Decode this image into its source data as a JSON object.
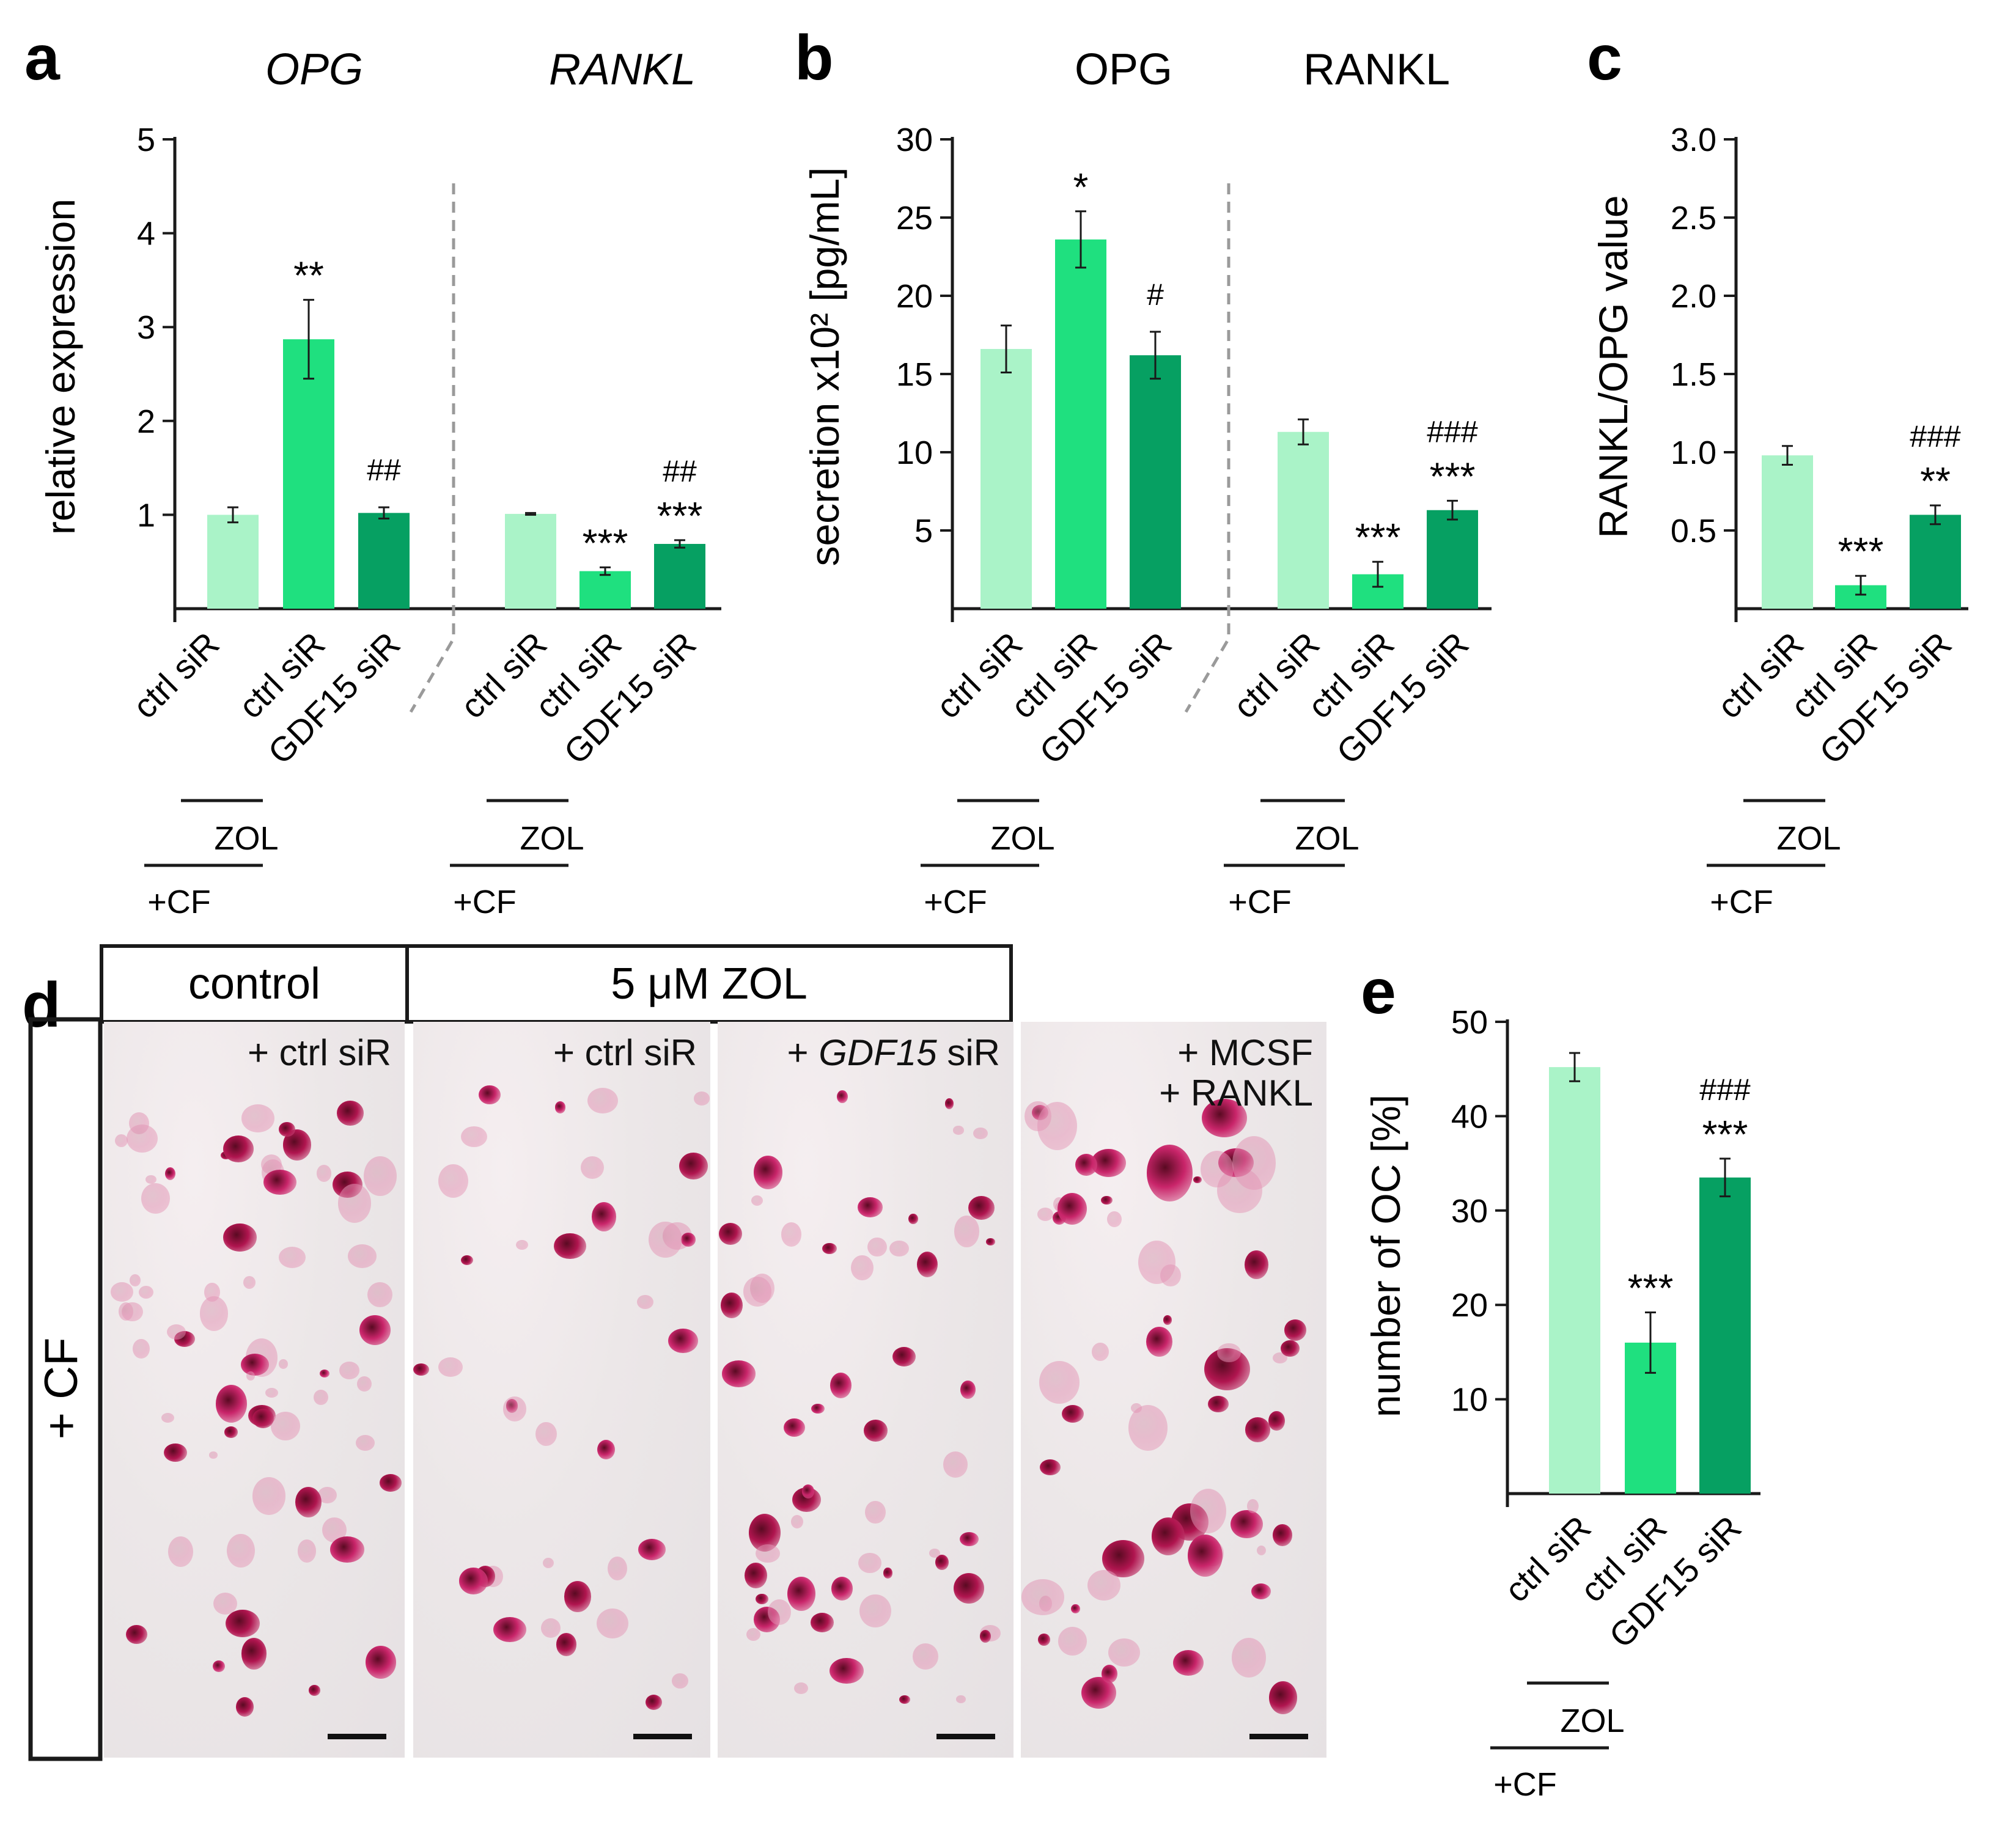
{
  "colors": {
    "light": "#aaf3c8",
    "mid": "#1fe07f",
    "dark": "#06a062",
    "axis": "#1a1a1a",
    "dash": "#9a9a9a"
  },
  "panels": {
    "a": {
      "letter": "a",
      "ylabel": "relative expression",
      "groupTitles": [
        "OPG",
        "RANKL"
      ],
      "groupTitleItalic": true,
      "yticks": [
        "5",
        "4",
        "3",
        "2",
        "1"
      ]
    },
    "b": {
      "letter": "b",
      "ylabel": "secretion x10² [pg/mL]",
      "groupTitles": [
        "OPG",
        "RANKL"
      ],
      "groupTitleItalic": false,
      "yticks": [
        "30",
        "25",
        "20",
        "15",
        "10",
        "5"
      ]
    },
    "c": {
      "letter": "c",
      "ylabel": "RANKL/OPG value",
      "yticks": [
        "3.0",
        "2.5",
        "2.0",
        "1.5",
        "1.0",
        "0.5"
      ]
    },
    "e": {
      "letter": "e",
      "ylabel": "number of OC [%]",
      "yticks": [
        "50",
        "40",
        "30",
        "20",
        "10"
      ]
    }
  },
  "chart_data": [
    {
      "panel": "a",
      "type": "bar",
      "ylabel": "relative expression",
      "ylim": [
        0,
        5
      ],
      "categories": [
        "ctrl siR",
        "ctrl siR",
        "GDF15 siR"
      ],
      "groups": [
        {
          "title": "OPG",
          "values": [
            1.0,
            2.87,
            1.02
          ],
          "errors": [
            0.08,
            0.42,
            0.06
          ],
          "annotations": [
            "",
            "**",
            "##"
          ]
        },
        {
          "title": "RANKL",
          "values": [
            1.01,
            0.4,
            0.69
          ],
          "errors": [
            0.01,
            0.04,
            0.04
          ],
          "annotations": [
            "",
            "***",
            "##\n***"
          ]
        }
      ],
      "conditions": [
        "ZOL",
        "+CF"
      ]
    },
    {
      "panel": "b",
      "type": "bar",
      "ylabel": "secretion x10² [pg/mL]",
      "ylim": [
        0,
        30
      ],
      "categories": [
        "ctrl siR",
        "ctrl siR",
        "GDF15 siR"
      ],
      "groups": [
        {
          "title": "OPG",
          "values": [
            16.6,
            23.6,
            16.2
          ],
          "errors": [
            1.5,
            1.8,
            1.5
          ],
          "annotations": [
            "",
            "*",
            "#"
          ]
        },
        {
          "title": "RANKL",
          "values": [
            11.3,
            2.2,
            6.3
          ],
          "errors": [
            0.8,
            0.8,
            0.6
          ],
          "annotations": [
            "",
            "***",
            "###\n***"
          ]
        }
      ],
      "conditions": [
        "ZOL",
        "+CF"
      ]
    },
    {
      "panel": "c",
      "type": "bar",
      "ylabel": "RANKL/OPG value",
      "ylim": [
        0,
        3.0
      ],
      "categories": [
        "ctrl siR",
        "ctrl siR",
        "GDF15 siR"
      ],
      "groups": [
        {
          "title": "",
          "values": [
            0.98,
            0.15,
            0.6
          ],
          "errors": [
            0.06,
            0.06,
            0.06
          ],
          "annotations": [
            "",
            "***",
            "###\n**"
          ]
        }
      ],
      "conditions": [
        "ZOL",
        "+CF"
      ]
    },
    {
      "panel": "e",
      "type": "bar",
      "ylabel": "number of OC [%]",
      "ylim": [
        0,
        50
      ],
      "categories": [
        "ctrl siR",
        "ctrl siR",
        "GDF15 siR"
      ],
      "groups": [
        {
          "title": "",
          "values": [
            45.2,
            16.0,
            33.5
          ],
          "errors": [
            1.5,
            3.2,
            2.0
          ],
          "annotations": [
            "",
            "***",
            "###\n***"
          ]
        }
      ],
      "conditions": [
        "ZOL",
        "+CF"
      ]
    }
  ],
  "panel_d": {
    "letter": "d",
    "header_control": "control",
    "header_zol": "5 μM ZOL",
    "side_label": "+ CF",
    "images": [
      {
        "label": "+ ctrl siR",
        "italic": "",
        "suffix": ""
      },
      {
        "label": "+ ctrl siR",
        "italic": "",
        "suffix": ""
      },
      {
        "label": "+ ",
        "italic": "GDF15",
        "suffix": " siR"
      },
      {
        "label": "+ MCSF\n+ RANKL",
        "italic": "",
        "suffix": ""
      }
    ]
  }
}
